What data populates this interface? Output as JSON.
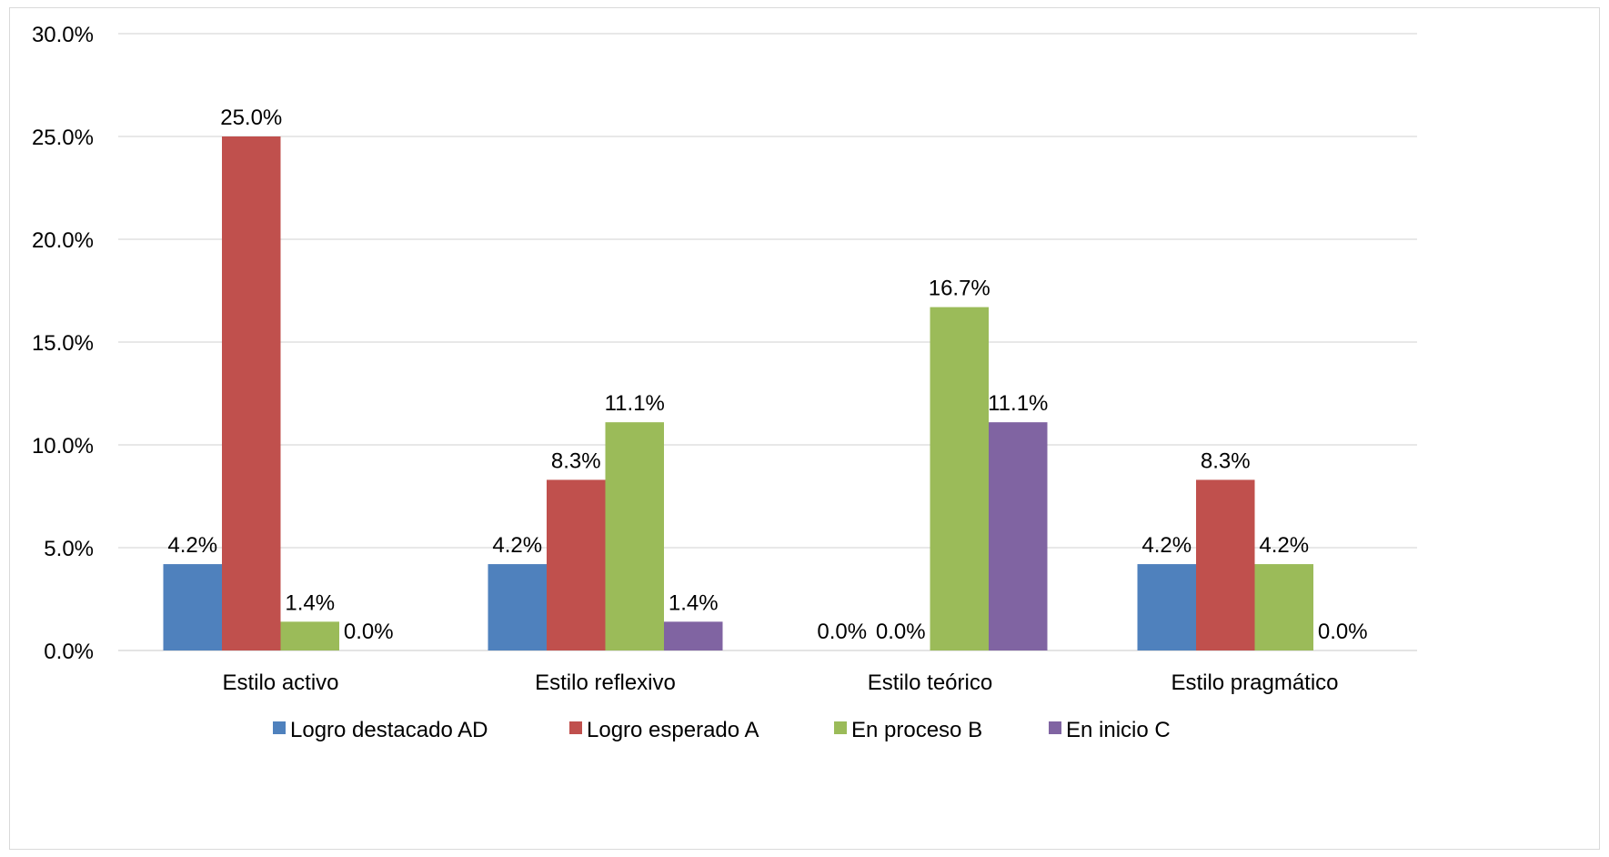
{
  "chart_data": {
    "type": "bar",
    "categories": [
      "Estilo activo",
      "Estilo reflexivo",
      "Estilo teórico",
      "Estilo pragmático"
    ],
    "series": [
      {
        "name": "Logro destacado AD",
        "color": "#4f81bd",
        "values": [
          4.2,
          4.2,
          0.0,
          4.2
        ],
        "labels": [
          "4.2%",
          "4.2%",
          "0.0%",
          "4.2%"
        ]
      },
      {
        "name": "Logro esperado A",
        "color": "#c0504d",
        "values": [
          25.0,
          8.3,
          0.0,
          8.3
        ],
        "labels": [
          "25.0%",
          "8.3%",
          "0.0%",
          "8.3%"
        ]
      },
      {
        "name": "En proceso B",
        "color": "#9bbb59",
        "values": [
          1.4,
          11.1,
          16.7,
          4.2
        ],
        "labels": [
          "1.4%",
          "11.1%",
          "16.7%",
          "4.2%"
        ]
      },
      {
        "name": "En inicio C",
        "color": "#8064a2",
        "values": [
          0.0,
          1.4,
          11.1,
          0.0
        ],
        "labels": [
          "0.0%",
          "1.4%",
          "11.1%",
          "0.0%"
        ]
      }
    ],
    "ylim": [
      0,
      30
    ],
    "yticks": [
      0,
      5,
      10,
      15,
      20,
      25,
      30
    ],
    "ytick_labels": [
      "0.0%",
      "5.0%",
      "10.0%",
      "15.0%",
      "20.0%",
      "25.0%",
      "30.0%"
    ],
    "title": "",
    "xlabel": "",
    "ylabel": "",
    "grid": true,
    "legend_position": "bottom"
  }
}
